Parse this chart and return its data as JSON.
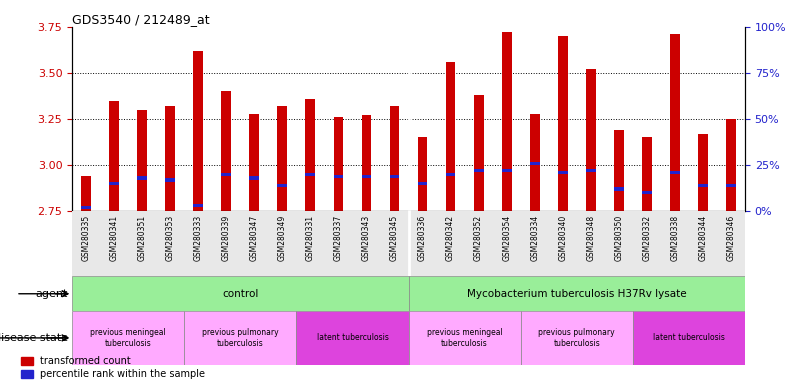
{
  "title": "GDS3540 / 212489_at",
  "samples": [
    "GSM280335",
    "GSM280341",
    "GSM280351",
    "GSM280353",
    "GSM280333",
    "GSM280339",
    "GSM280347",
    "GSM280349",
    "GSM280331",
    "GSM280337",
    "GSM280343",
    "GSM280345",
    "GSM280336",
    "GSM280342",
    "GSM280352",
    "GSM280354",
    "GSM280334",
    "GSM280340",
    "GSM280348",
    "GSM280350",
    "GSM280332",
    "GSM280338",
    "GSM280344",
    "GSM280346"
  ],
  "red_values": [
    2.94,
    3.35,
    3.3,
    3.32,
    3.62,
    3.4,
    3.28,
    3.32,
    3.36,
    3.26,
    3.27,
    3.32,
    3.15,
    3.56,
    3.38,
    3.72,
    3.28,
    3.7,
    3.52,
    3.19,
    3.15,
    3.71,
    3.17,
    3.25
  ],
  "blue_pct": [
    2,
    15,
    18,
    17,
    3,
    20,
    18,
    14,
    20,
    19,
    19,
    19,
    15,
    20,
    22,
    22,
    26,
    21,
    22,
    12,
    10,
    21,
    14,
    14
  ],
  "ylim_left": [
    2.75,
    3.75
  ],
  "ylim_right": [
    0,
    100
  ],
  "yticks_left": [
    2.75,
    3.0,
    3.25,
    3.5,
    3.75
  ],
  "yticks_right": [
    0,
    25,
    50,
    75,
    100
  ],
  "bar_width": 0.35,
  "red_color": "#cc0000",
  "blue_color": "#2222cc",
  "left_axis_color": "#cc0000",
  "right_axis_color": "#2222cc",
  "agent_groups": [
    {
      "label": "control",
      "start": 0,
      "end": 11,
      "color": "#99ee99"
    },
    {
      "label": "Mycobacterium tuberculosis H37Rv lysate",
      "start": 12,
      "end": 23,
      "color": "#99ee99"
    }
  ],
  "disease_groups": [
    {
      "label": "previous meningeal\ntuberculosis",
      "start": 0,
      "end": 3,
      "color": "#ffaaff"
    },
    {
      "label": "previous pulmonary\ntuberculosis",
      "start": 4,
      "end": 7,
      "color": "#ffaaff"
    },
    {
      "label": "latent tuberculosis",
      "start": 8,
      "end": 11,
      "color": "#dd44dd"
    },
    {
      "label": "previous meningeal\ntuberculosis",
      "start": 12,
      "end": 15,
      "color": "#ffaaff"
    },
    {
      "label": "previous pulmonary\ntuberculosis",
      "start": 16,
      "end": 19,
      "color": "#ffaaff"
    },
    {
      "label": "latent tuberculosis",
      "start": 20,
      "end": 23,
      "color": "#dd44dd"
    }
  ],
  "legend_items": [
    {
      "label": "transformed count",
      "color": "#cc0000"
    },
    {
      "label": "percentile rank within the sample",
      "color": "#2222cc"
    }
  ],
  "grid_lines": [
    3.0,
    3.25,
    3.5
  ],
  "bg_color": "#e8e8e8"
}
